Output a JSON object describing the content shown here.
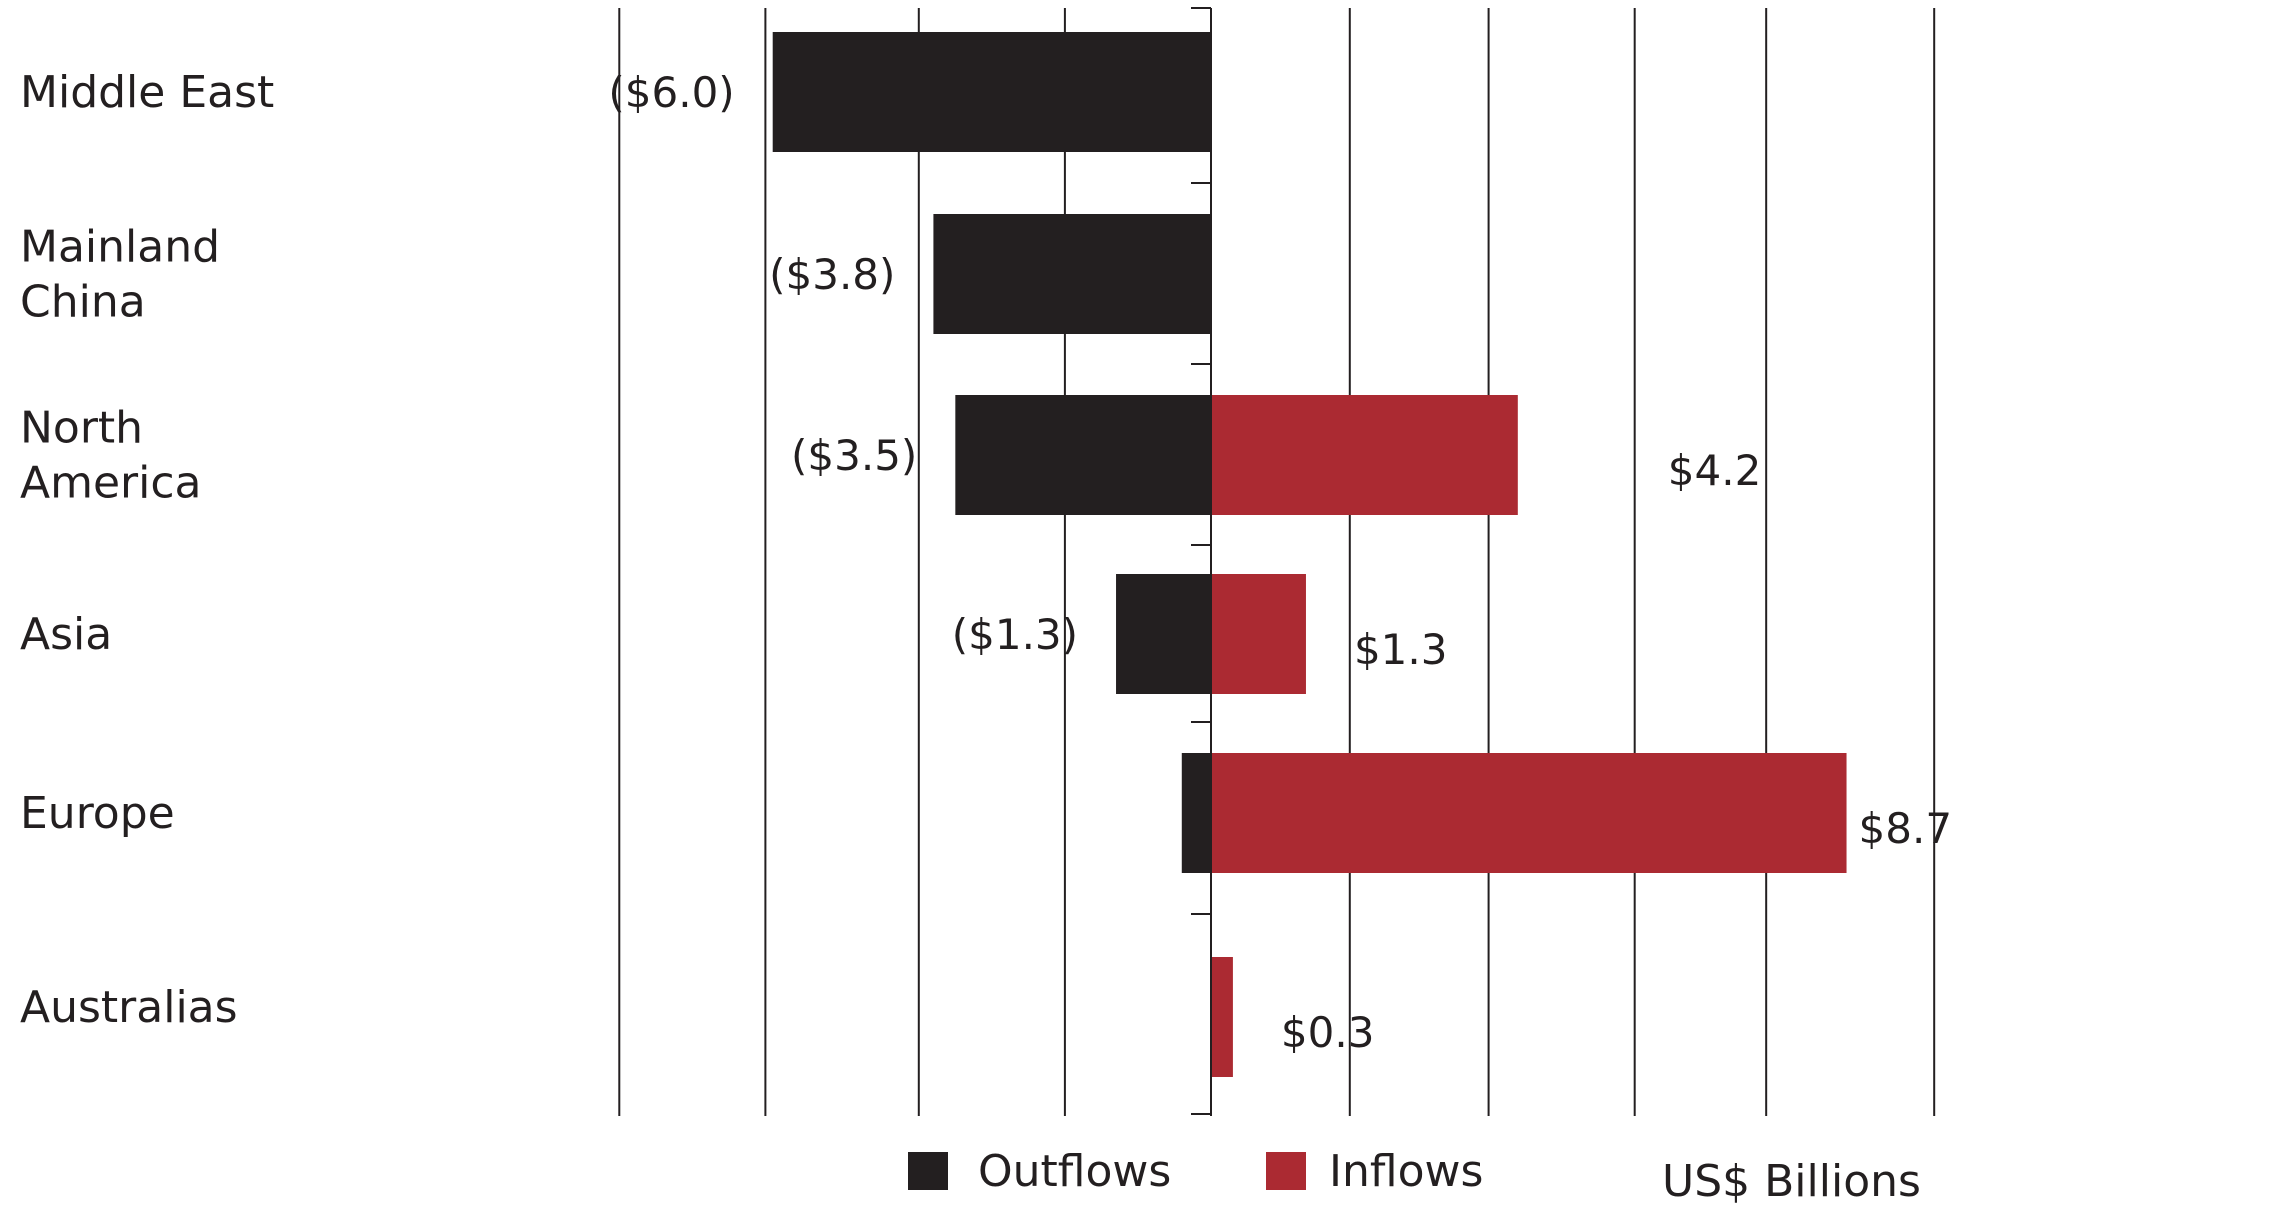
{
  "chart_data": {
    "type": "bar",
    "orientation": "horizontal",
    "title": "",
    "xlabel": "US$ Billions",
    "ylabel": "",
    "grid": true,
    "legend_position": "bottom",
    "categories": [
      "Middle East",
      "Mainland China",
      "North America",
      "Asia",
      "Europe",
      "Australias"
    ],
    "category_lines": [
      [
        "Middle East"
      ],
      [
        "Mainland",
        "China"
      ],
      [
        "North",
        "America"
      ],
      [
        "Asia"
      ],
      [
        "Europe"
      ],
      [
        "Australias"
      ]
    ],
    "series": [
      {
        "name": "Outflows",
        "color": "#231f20",
        "values": [
          -6.0,
          -3.8,
          -3.5,
          -1.3,
          -0.4,
          0
        ],
        "labels": [
          "($6.0)",
          "($3.8)",
          "($3.5)",
          "($1.3)",
          "",
          ""
        ]
      },
      {
        "name": "Inflows",
        "color": "#ab2a32",
        "values": [
          0,
          0,
          4.2,
          1.3,
          8.7,
          0.3
        ],
        "labels": [
          "",
          "",
          "$4.2",
          "$1.3",
          "$8.7",
          "$0.3"
        ]
      }
    ],
    "xlim": [
      -8.1,
      9.9
    ],
    "gridlines": [
      -8.1,
      -6.1,
      -4.0,
      -2.0,
      1.9,
      3.8,
      5.8,
      7.6,
      9.9
    ]
  }
}
